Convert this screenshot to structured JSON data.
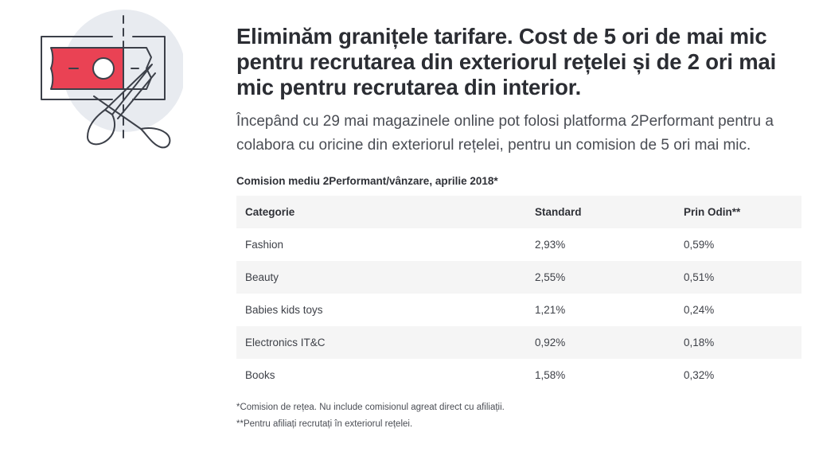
{
  "illustration": {
    "icon": "cut-fees-icon",
    "colors": {
      "circle": "#e8ebf0",
      "ticket": "#ea4254",
      "outline": "#3c4049"
    }
  },
  "headline": "Eliminăm granițele tarifare. Cost de 5 ori de mai mic pentru recrutarea din exteriorul rețelei și de 2 ori mai mic pentru recrutarea din interior.",
  "lead": "Începând cu 29 mai magazinele online pot folosi platforma 2Performant pentru a colabora cu oricine din exteriorul rețelei, pentru un comision de 5 ori mai mic.",
  "table": {
    "caption": "Comision mediu 2Performant/vânzare, aprilie 2018*",
    "headers": [
      "Categorie",
      "Standard",
      "Prin Odin**"
    ],
    "rows": [
      [
        "Fashion",
        "2,93%",
        "0,59%"
      ],
      [
        "Beauty",
        "2,55%",
        "0,51%"
      ],
      [
        "Babies kids toys",
        "1,21%",
        "0,24%"
      ],
      [
        "Electronics IT&C",
        "0,92%",
        "0,18%"
      ],
      [
        "Books",
        "1,58%",
        "0,32%"
      ]
    ]
  },
  "footnotes": [
    "*Comision de rețea. Nu include comisionul agreat direct cu afiliații.",
    "**Pentru afiliați recrutați în exteriorul rețelei."
  ]
}
